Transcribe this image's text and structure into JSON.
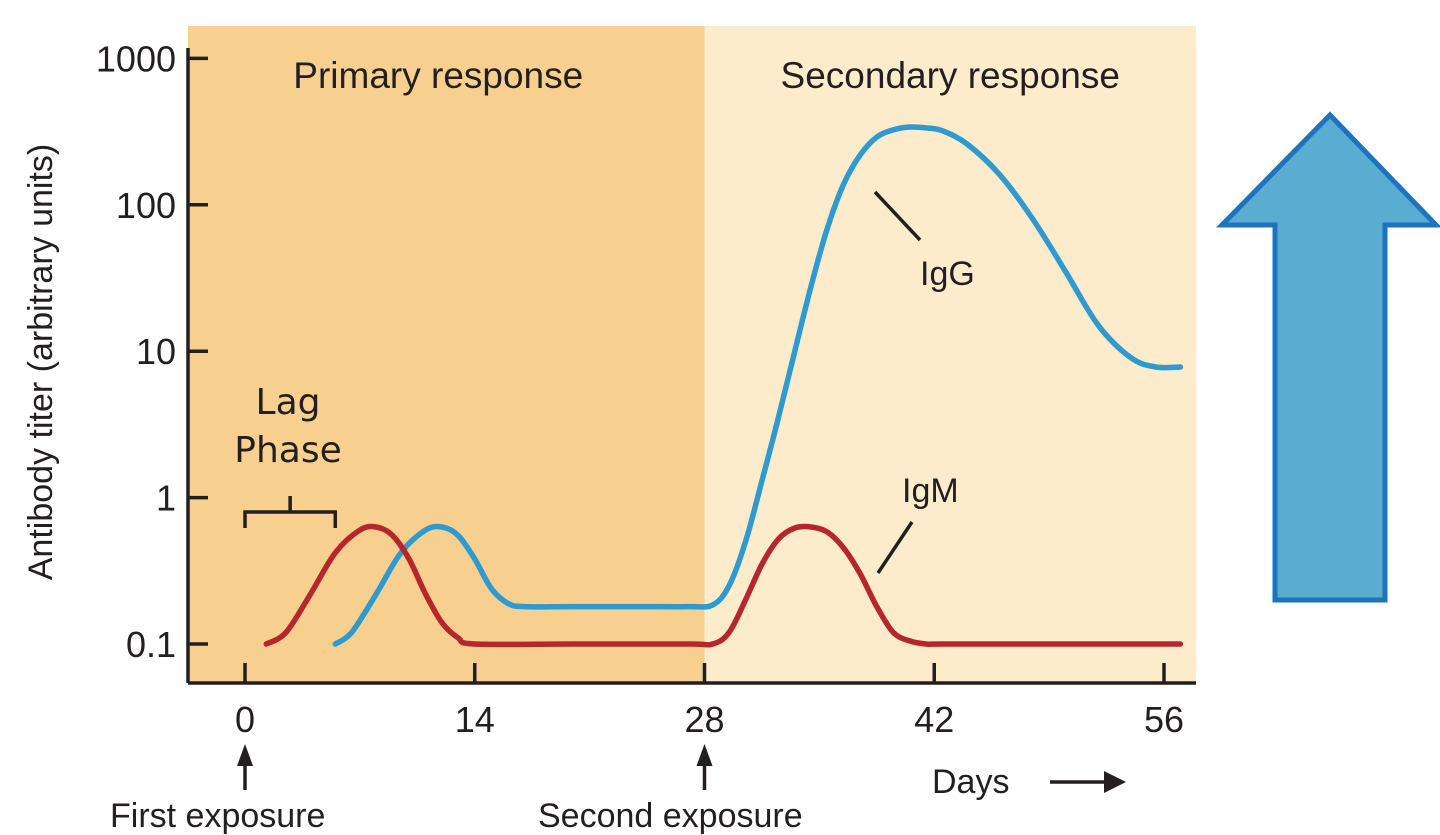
{
  "chart_data": {
    "type": "line",
    "ylabel": "Antibody titer (arbitrary units)",
    "xlabel": "Days",
    "xlabel_arrow": "→",
    "yscale": "log",
    "ylim": [
      0.1,
      1000
    ],
    "xlim": [
      0,
      57
    ],
    "x_ticks": [
      0,
      14,
      28,
      42,
      56
    ],
    "y_ticks": [
      {
        "value": 0.1,
        "label": "0.1"
      },
      {
        "value": 1,
        "label": "1"
      },
      {
        "value": 10,
        "label": "10"
      },
      {
        "value": 100,
        "label": "100"
      },
      {
        "value": 1000,
        "label": "1000"
      }
    ],
    "regions": [
      {
        "name": "Primary response",
        "from": -3,
        "to": 28,
        "color": "#f7d08f"
      },
      {
        "name": "Secondary response",
        "from": 28,
        "to": 57,
        "color": "#fdeccb"
      }
    ],
    "series": [
      {
        "name": "IgG",
        "color": "#2e9ad0",
        "x": [
          5.5,
          6.5,
          8,
          9.5,
          11,
          12,
          13,
          14,
          15,
          16,
          17,
          20,
          24,
          27,
          28.5,
          29.5,
          30.5,
          31.5,
          32.5,
          33.5,
          34.5,
          35.5,
          36.5,
          37.5,
          38.5,
          39.5,
          40.5,
          41.5,
          42.5,
          44,
          46,
          48,
          50,
          52,
          54,
          55.5,
          57
        ],
        "values": [
          0.1,
          0.12,
          0.22,
          0.42,
          0.6,
          0.63,
          0.55,
          0.38,
          0.24,
          0.19,
          0.18,
          0.18,
          0.18,
          0.18,
          0.185,
          0.25,
          0.5,
          1.3,
          3.5,
          10,
          28,
          70,
          140,
          220,
          290,
          325,
          340,
          335,
          320,
          260,
          160,
          80,
          35,
          15,
          9,
          7.8,
          7.8
        ]
      },
      {
        "name": "IgM",
        "color": "#b5272d",
        "x": [
          1.3,
          2.5,
          4,
          5.5,
          7,
          8,
          9,
          10,
          11,
          12,
          13,
          14,
          20,
          27,
          28.5,
          29.5,
          30.5,
          31.5,
          32.5,
          33.5,
          34.5,
          35.5,
          36.5,
          37.5,
          38.5,
          39.5,
          40.5,
          41.5,
          42.5,
          48,
          57
        ],
        "values": [
          0.1,
          0.12,
          0.22,
          0.42,
          0.6,
          0.63,
          0.55,
          0.38,
          0.22,
          0.14,
          0.11,
          0.1,
          0.1,
          0.1,
          0.1,
          0.12,
          0.2,
          0.35,
          0.52,
          0.62,
          0.63,
          0.58,
          0.45,
          0.3,
          0.18,
          0.12,
          0.105,
          0.1,
          0.1,
          0.1,
          0.1
        ]
      }
    ],
    "annotations": {
      "first_exposure": {
        "text": "First exposure",
        "x": 0
      },
      "second_exposure": {
        "text": "Second exposure",
        "x": 28
      },
      "lag_phase": {
        "line1": "Lag",
        "line2": "Phase",
        "from": 0,
        "to": 5.5
      }
    },
    "side_arrow": {
      "direction": "up",
      "fill": "#5aadd0",
      "stroke": "#1e73be"
    }
  }
}
